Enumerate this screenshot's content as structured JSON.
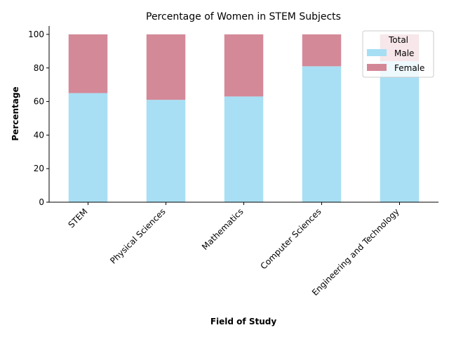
{
  "chart_data": {
    "type": "bar",
    "stacked": true,
    "title": "Percentage of Women in STEM Subjects",
    "xlabel": "Field of Study",
    "ylabel": "Percentage",
    "categories": [
      "STEM",
      "Physical Sciences",
      "Mathematics",
      "Computer Sciences",
      "Engineering and Technology"
    ],
    "series": [
      {
        "name": "Male",
        "values": [
          65,
          61,
          63,
          81,
          84
        ],
        "color": "#a6def4"
      },
      {
        "name": "Female",
        "values": [
          35,
          39,
          37,
          19,
          16
        ],
        "color": "#d38796"
      }
    ],
    "ylim": [
      0,
      105
    ],
    "yticks": [
      0,
      20,
      40,
      60,
      80,
      100
    ],
    "grid": false,
    "legend": {
      "title": "Total",
      "placement": "top-right"
    }
  }
}
